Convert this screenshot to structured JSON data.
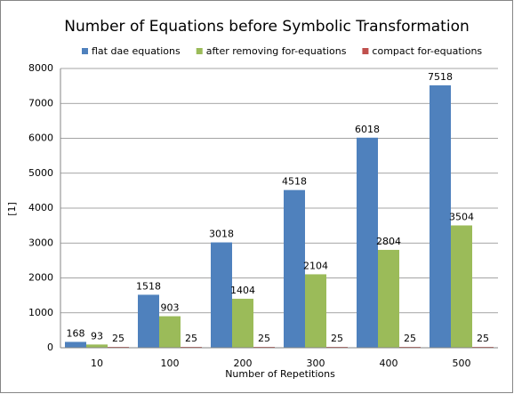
{
  "chart_data": {
    "type": "bar",
    "title": "Number of Equations before Symbolic Transformation",
    "x_label": "Number of Repetitions",
    "y_label": "[1]",
    "categories": [
      "10",
      "100",
      "200",
      "300",
      "400",
      "500"
    ],
    "series": [
      {
        "name": "flat dae equations",
        "color": "#4f81bd",
        "values": [
          168,
          1518,
          3018,
          4518,
          6018,
          7518
        ]
      },
      {
        "name": "after removing for-equations",
        "color": "#9bbb59",
        "values": [
          93,
          903,
          1404,
          2104,
          2804,
          3504
        ]
      },
      {
        "name": "compact for-equations",
        "color": "#c0504d",
        "values": [
          25,
          25,
          25,
          25,
          25,
          25
        ]
      }
    ],
    "ylim": [
      0,
      8000
    ],
    "yticks": [
      0,
      1000,
      2000,
      3000,
      4000,
      5000,
      6000,
      7000,
      8000
    ],
    "grid": true,
    "legend": "top"
  }
}
